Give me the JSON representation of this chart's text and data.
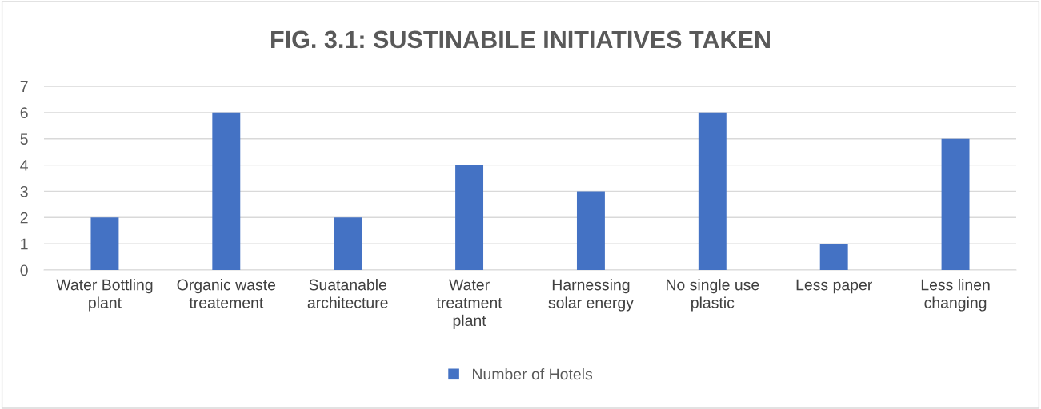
{
  "chart_data": {
    "type": "bar",
    "title": "FIG. 3.1: SUSTINABILE INITIATIVES TAKEN",
    "categories": [
      "Water Bottling\nplant",
      "Organic waste\ntreatement",
      "Suatanable\narchitecture",
      "Water\ntreatment\nplant",
      "Harnessing\nsolar energy",
      "No single use\nplastic",
      "Less paper",
      "Less linen\nchanging"
    ],
    "series": [
      {
        "name": "Number of Hotels",
        "color": "#4472c4",
        "values": [
          2,
          6,
          2,
          4,
          3,
          6,
          1,
          5
        ]
      }
    ],
    "ylim": [
      0,
      7
    ],
    "yticks": [
      0,
      1,
      2,
      3,
      4,
      5,
      6,
      7
    ],
    "grid": "y",
    "legend": "bottom"
  }
}
